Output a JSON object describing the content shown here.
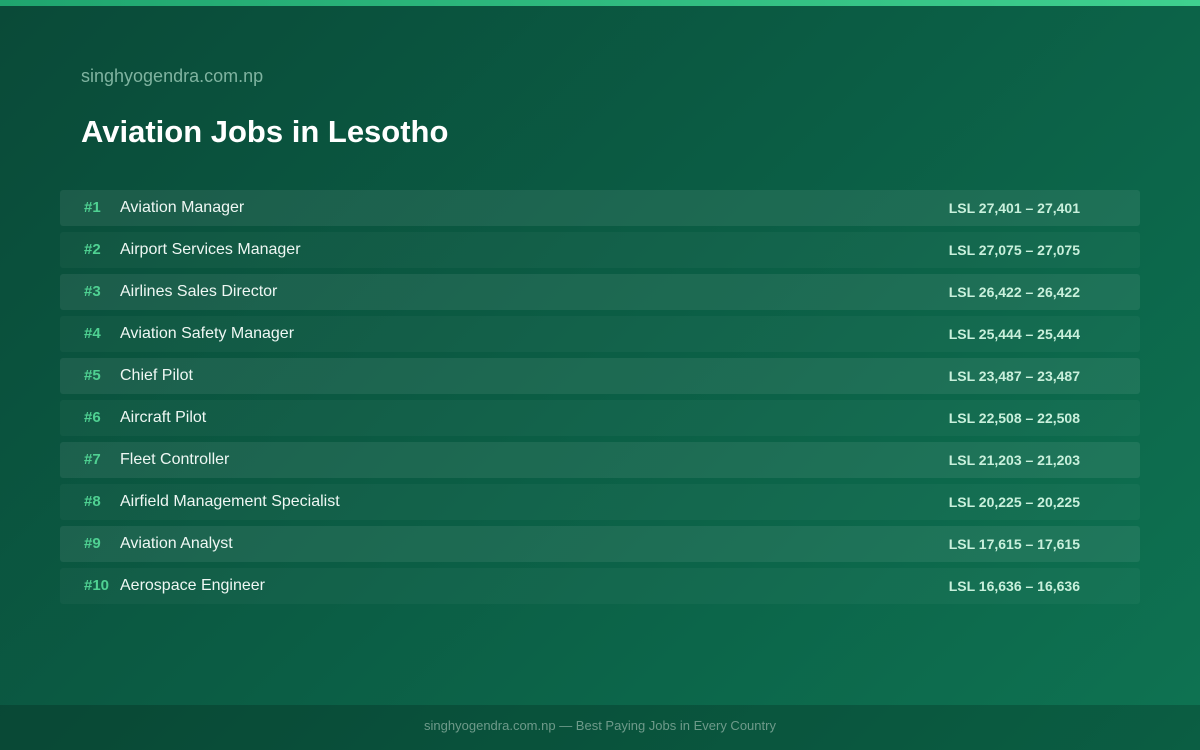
{
  "header": {
    "site": "singhyogendra.com.np",
    "title": "Aviation Jobs in Lesotho"
  },
  "rows": [
    {
      "rank": "#1",
      "name": "Aviation Manager",
      "salary": "LSL 27,401 – 27,401"
    },
    {
      "rank": "#2",
      "name": "Airport Services Manager",
      "salary": "LSL 27,075 – 27,075"
    },
    {
      "rank": "#3",
      "name": "Airlines Sales Director",
      "salary": "LSL 26,422 – 26,422"
    },
    {
      "rank": "#4",
      "name": "Aviation Safety Manager",
      "salary": "LSL 25,444 – 25,444"
    },
    {
      "rank": "#5",
      "name": "Chief Pilot",
      "salary": "LSL 23,487 – 23,487"
    },
    {
      "rank": "#6",
      "name": "Aircraft Pilot",
      "salary": "LSL 22,508 – 22,508"
    },
    {
      "rank": "#7",
      "name": "Fleet Controller",
      "salary": "LSL 21,203 – 21,203"
    },
    {
      "rank": "#8",
      "name": "Airfield Management Specialist",
      "salary": "LSL 20,225 – 20,225"
    },
    {
      "rank": "#9",
      "name": "Aviation Analyst",
      "salary": "LSL 17,615 – 17,615"
    },
    {
      "rank": "#10",
      "name": "Aerospace Engineer",
      "salary": "LSL 16,636 – 16,636"
    }
  ],
  "footer": {
    "text": "singhyogendra.com.np — Best Paying Jobs in Every Country"
  }
}
